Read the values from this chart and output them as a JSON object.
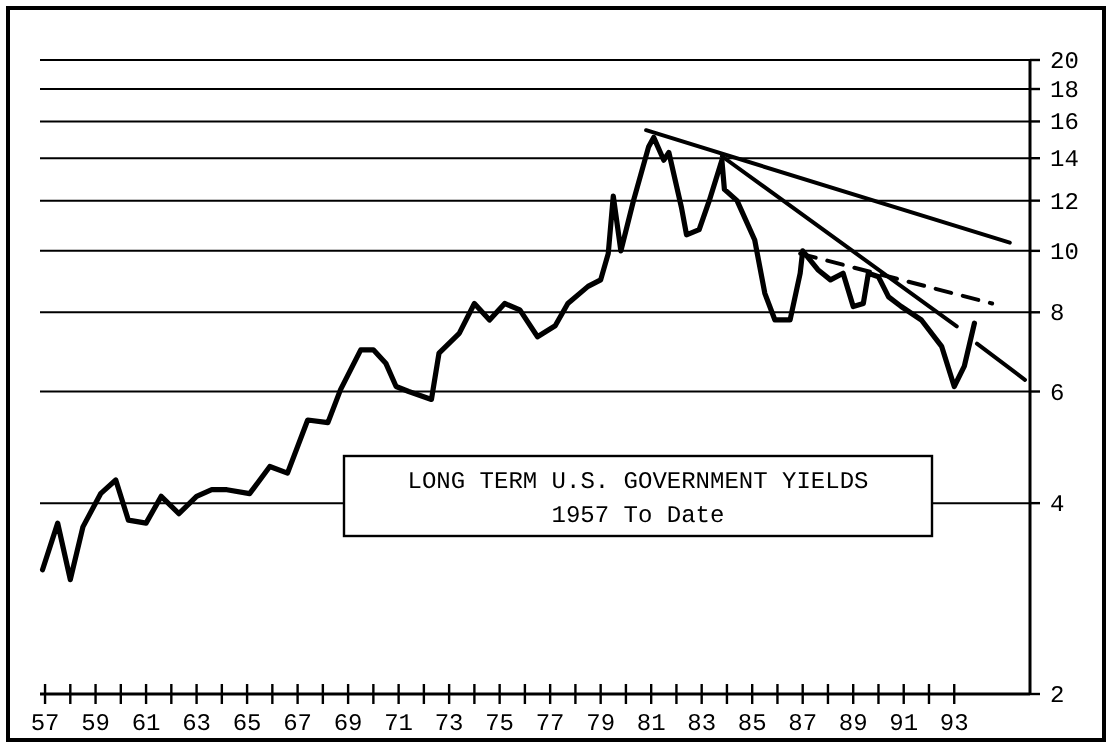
{
  "chart_data": {
    "type": "line",
    "title": "LONG TERM U.S. GOVERNMENT YIELDS",
    "subtitle": "1957 To Date",
    "log": "y",
    "grid": "y",
    "marker": "none",
    "xlim": [
      1956.8,
      1996
    ],
    "ylim": [
      2,
      20
    ],
    "yticks": [
      2,
      4,
      6,
      8,
      10,
      12,
      14,
      16,
      18,
      20
    ],
    "xticks": [
      {
        "value": 1957,
        "label": "57"
      },
      {
        "value": 1958,
        "label": null
      },
      {
        "value": 1959,
        "label": "59"
      },
      {
        "value": 1960,
        "label": null
      },
      {
        "value": 1961,
        "label": "61"
      },
      {
        "value": 1962,
        "label": null
      },
      {
        "value": 1963,
        "label": "63"
      },
      {
        "value": 1964,
        "label": null
      },
      {
        "value": 1965,
        "label": "65"
      },
      {
        "value": 1966,
        "label": null
      },
      {
        "value": 1967,
        "label": "67"
      },
      {
        "value": 1968,
        "label": null
      },
      {
        "value": 1969,
        "label": "69"
      },
      {
        "value": 1970,
        "label": null
      },
      {
        "value": 1971,
        "label": "71"
      },
      {
        "value": 1972,
        "label": null
      },
      {
        "value": 1973,
        "label": "73"
      },
      {
        "value": 1974,
        "label": null
      },
      {
        "value": 1975,
        "label": "75"
      },
      {
        "value": 1976,
        "label": null
      },
      {
        "value": 1977,
        "label": "77"
      },
      {
        "value": 1978,
        "label": null
      },
      {
        "value": 1979,
        "label": "79"
      },
      {
        "value": 1980,
        "label": null
      },
      {
        "value": 1981,
        "label": "81"
      },
      {
        "value": 1982,
        "label": null
      },
      {
        "value": 1983,
        "label": "83"
      },
      {
        "value": 1984,
        "label": null
      },
      {
        "value": 1985,
        "label": "85"
      },
      {
        "value": 1986,
        "label": null
      },
      {
        "value": 1987,
        "label": "87"
      },
      {
        "value": 1988,
        "label": null
      },
      {
        "value": 1989,
        "label": "89"
      },
      {
        "value": 1990,
        "label": null
      },
      {
        "value": 1991,
        "label": "91"
      },
      {
        "value": 1992,
        "label": null
      },
      {
        "value": 1993,
        "label": "93"
      }
    ],
    "series": [
      {
        "color": "#000000",
        "line_style": "solid",
        "x": [
          1956.9,
          1957.5,
          1958.0,
          1958.5,
          1959.2,
          1959.8,
          1960.3,
          1961.0,
          1961.6,
          1962.3,
          1963.0,
          1963.6,
          1964.2,
          1965.1,
          1965.9,
          1966.6,
          1967.4,
          1968.2,
          1968.7,
          1969.5,
          1970.0,
          1970.5,
          1970.9,
          1971.4,
          1972.3,
          1972.6,
          1973.4,
          1974.0,
          1974.6,
          1975.2,
          1975.8,
          1976.5,
          1977.2,
          1977.7,
          1978.5,
          1979.0,
          1979.3,
          1979.5,
          1979.8,
          1980.3,
          1980.9,
          1981.1,
          1981.5,
          1981.7,
          1982.2,
          1982.4,
          1982.9,
          1983.3,
          1983.8,
          1983.9,
          1984.4,
          1985.1,
          1985.5,
          1985.9,
          1986.5,
          1986.9,
          1987.0,
          1987.6,
          1988.1,
          1988.6,
          1989.0,
          1989.4,
          1989.6,
          1990.0,
          1990.4,
          1990.9,
          1991.7,
          1992.5,
          1993.0,
          1993.4,
          1993.8
        ],
        "values": [
          3.14,
          3.72,
          3.03,
          3.67,
          4.14,
          4.35,
          3.76,
          3.72,
          4.1,
          3.85,
          4.1,
          4.2,
          4.2,
          4.14,
          4.57,
          4.46,
          5.41,
          5.36,
          6.04,
          6.98,
          6.98,
          6.64,
          6.11,
          6.0,
          5.83,
          6.9,
          7.41,
          8.26,
          7.78,
          8.26,
          8.07,
          7.32,
          7.62,
          8.26,
          8.79,
          9.0,
          9.9,
          12.2,
          10.0,
          12.0,
          14.6,
          15.1,
          13.9,
          14.3,
          11.7,
          10.6,
          10.8,
          12.0,
          13.9,
          12.5,
          12.0,
          10.4,
          8.57,
          7.78,
          7.78,
          9.22,
          10.0,
          9.34,
          9.0,
          9.22,
          8.17,
          8.26,
          9.22,
          9.1,
          8.46,
          8.17,
          7.78,
          7.07,
          6.11,
          6.58,
          7.69
        ]
      },
      {
        "color": "#000000",
        "line_style": "solid",
        "x": [
          1980.8,
          1995.2
        ],
        "values": [
          15.5,
          10.3
        ]
      },
      {
        "color": "#000000",
        "line_style": "solid",
        "x": [
          1983.8,
          1993.1
        ],
        "values": [
          14.1,
          7.6
        ]
      },
      {
        "color": "#000000",
        "line_style": "dashed",
        "x": [
          1986.9,
          1994.5
        ],
        "values": [
          9.9,
          8.26
        ]
      },
      {
        "color": "#000000",
        "line_style": "solid",
        "x": [
          1993.9,
          1995.8
        ],
        "values": [
          7.14,
          6.26
        ]
      }
    ]
  }
}
